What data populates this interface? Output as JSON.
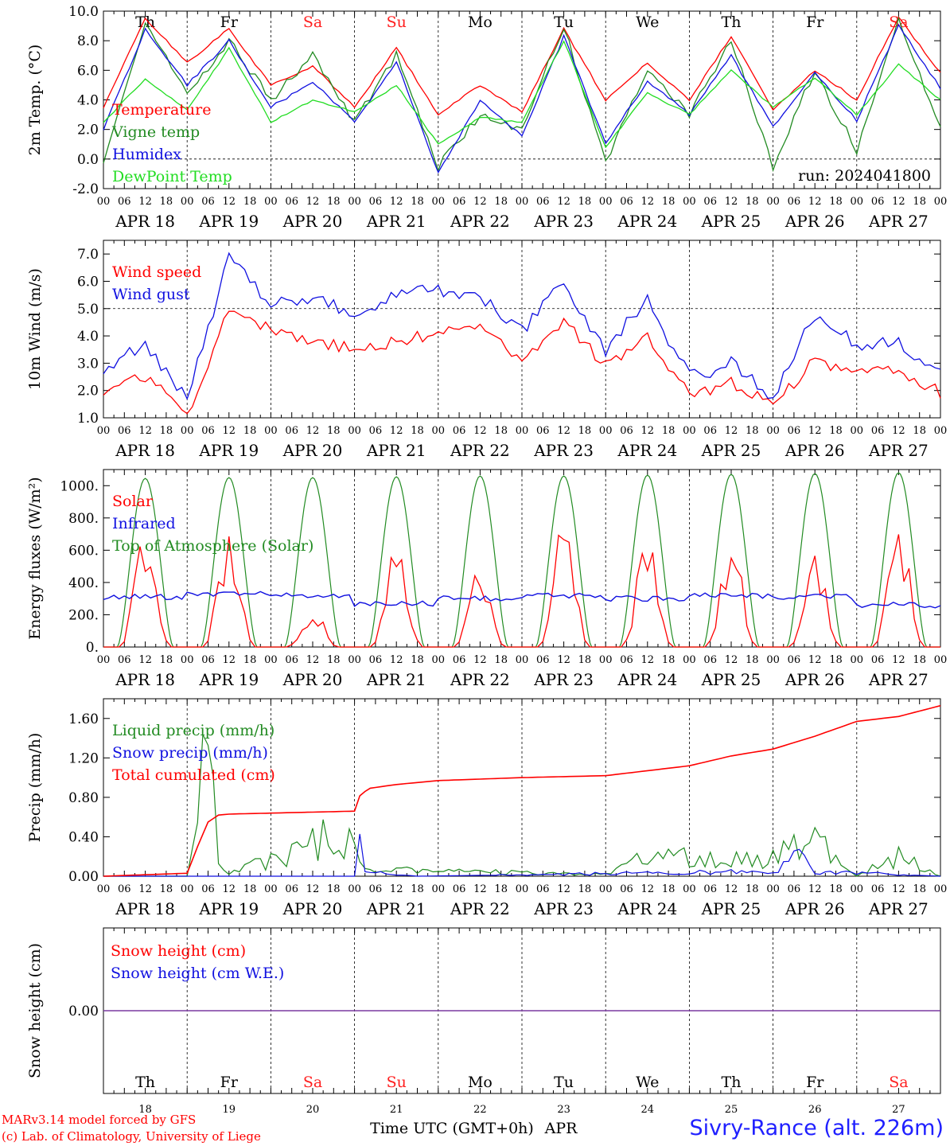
{
  "meta": {
    "run": "run: 2024041800"
  },
  "days": {
    "weekday": [
      "Th",
      "Fr",
      "Sa",
      "Su",
      "Mo",
      "Tu",
      "We",
      "Th",
      "Fr",
      "Sa"
    ],
    "weekend": [
      false,
      false,
      true,
      true,
      false,
      false,
      false,
      false,
      false,
      true
    ],
    "date_labels": [
      "APR 18",
      "APR 19",
      "APR 20",
      "APR 21",
      "APR 22",
      "APR 23",
      "APR 24",
      "APR 25",
      "APR 26",
      "APR 27"
    ],
    "day_numbers": [
      "18",
      "19",
      "20",
      "21",
      "22",
      "23",
      "24",
      "25",
      "26",
      "27"
    ],
    "hour_ticks": [
      "00",
      "06",
      "12",
      "18"
    ],
    "end_tick": "00"
  },
  "colors": {
    "red": "#ff0000",
    "green": "#228b22",
    "blue": "#1010e0",
    "lightgreen": "#22dd22",
    "purple": "#7a3aa0",
    "weekend": "#ff2020"
  },
  "footer": {
    "credit_1": "MARv3.14 model forced by GFS",
    "credit_2": "(c) Lab. of Climatology, University of Liege",
    "time_label": "Time UTC (GMT+0h)",
    "month": "APR",
    "station": "Sivry-Rance (alt. 226m)"
  },
  "chart_data": [
    {
      "type": "line",
      "ylabel": "2m Temp. (°C)",
      "ylim": [
        -2,
        10
      ],
      "yticks": [
        "-2.0",
        "0.0",
        "2.0",
        "4.0",
        "6.0",
        "8.0",
        "10.0"
      ],
      "reference_line": 0,
      "x": [
        0,
        12,
        24,
        36,
        48,
        60,
        72,
        84,
        96,
        108,
        120,
        132,
        144,
        156,
        168,
        180,
        192,
        204,
        216,
        228,
        240
      ],
      "series": [
        {
          "name": "Temperature",
          "color": "red",
          "values": [
            3.5,
            9.5,
            6.5,
            8.8,
            5.0,
            6.3,
            3.5,
            7.5,
            3.0,
            5.0,
            3.2,
            8.8,
            4.0,
            6.5,
            4.0,
            8.3,
            3.3,
            6.0,
            4.0,
            9.6,
            5.8
          ]
        },
        {
          "name": "Vigne temp",
          "color": "green",
          "values": [
            0.0,
            9.0,
            4.5,
            8.0,
            4.0,
            7.0,
            2.5,
            7.0,
            -0.5,
            3.0,
            2.0,
            9.0,
            -0.2,
            6.0,
            3.0,
            8.0,
            -0.5,
            6.0,
            0.5,
            9.5,
            2.0
          ]
        },
        {
          "name": "Humidex",
          "color": "blue",
          "values": [
            2.0,
            8.8,
            5.0,
            8.0,
            3.5,
            5.2,
            2.5,
            6.6,
            -1.0,
            4.0,
            1.6,
            8.3,
            1.0,
            5.3,
            3.0,
            7.0,
            2.2,
            5.8,
            2.6,
            9.0,
            4.8
          ]
        },
        {
          "name": "DewPoint Temp",
          "color": "lightgreen",
          "values": [
            2.5,
            5.4,
            3.3,
            7.5,
            2.5,
            4.0,
            3.2,
            5.0,
            1.0,
            2.8,
            2.5,
            8.0,
            0.8,
            4.5,
            3.0,
            6.0,
            3.5,
            5.5,
            3.0,
            6.4,
            4.0
          ]
        }
      ],
      "annotation": "run: 2024041800"
    },
    {
      "type": "line",
      "ylabel": "10m Wind (m/s)",
      "ylim": [
        1,
        7.5
      ],
      "yticks": [
        "1.0",
        "2.0",
        "3.0",
        "4.0",
        "5.0",
        "6.0",
        "7.0"
      ],
      "reference_line": 5,
      "x": [
        0,
        12,
        24,
        36,
        48,
        60,
        72,
        84,
        96,
        108,
        120,
        132,
        144,
        156,
        168,
        180,
        192,
        204,
        216,
        228,
        240
      ],
      "series": [
        {
          "name": "Wind speed",
          "color": "red",
          "values": [
            2.0,
            2.5,
            1.1,
            5.0,
            4.2,
            3.8,
            3.5,
            3.8,
            4.1,
            4.3,
            3.0,
            4.5,
            2.9,
            4.0,
            1.8,
            2.3,
            1.5,
            3.1,
            2.6,
            2.8,
            1.9
          ]
        },
        {
          "name": "Wind gust",
          "color": "blue",
          "values": [
            2.7,
            3.8,
            1.6,
            7.0,
            5.1,
            5.5,
            4.8,
            5.6,
            5.6,
            5.4,
            4.2,
            5.9,
            3.5,
            5.3,
            2.5,
            3.0,
            1.8,
            4.8,
            3.7,
            3.8,
            2.6
          ]
        }
      ]
    },
    {
      "type": "line",
      "ylabel": "Energy fluxes (W/m²)",
      "ylim": [
        0,
        1100
      ],
      "yticks": [
        "0.",
        "200.",
        "400.",
        "600.",
        "800.",
        "1000."
      ],
      "x_daily_peak_hour": 12,
      "series": [
        {
          "name": "Solar",
          "color": "red",
          "daily_peak": [
            700,
            730,
            250,
            700,
            550,
            770,
            680,
            680,
            640,
            770
          ]
        },
        {
          "name": "Infrared",
          "color": "blue",
          "daily_mean": [
            310,
            330,
            320,
            270,
            300,
            320,
            300,
            320,
            310,
            260
          ]
        },
        {
          "name": "Top of Atmosphere (Solar)",
          "color": "green",
          "daily_peak": [
            1045,
            1050,
            1050,
            1055,
            1060,
            1060,
            1065,
            1070,
            1075,
            1080
          ]
        }
      ]
    },
    {
      "type": "line",
      "ylabel": "Precip (mm/h)",
      "ylim": [
        0,
        1.8
      ],
      "yticks": [
        "0.00",
        "0.40",
        "0.80",
        "1.20",
        "1.60"
      ],
      "series": [
        {
          "name": "Liquid precip (mm/h)",
          "color": "green",
          "x": [
            0,
            24,
            27,
            30,
            33,
            36,
            72,
            73,
            74,
            75,
            90,
            144,
            156,
            168,
            180,
            192,
            204,
            216,
            228,
            240
          ],
          "values": [
            0,
            0,
            0.5,
            1.38,
            0.1,
            0.02,
            0.48,
            0.1,
            0.25,
            0.05,
            0.06,
            0.02,
            0.2,
            0.18,
            0.15,
            0.2,
            0.35,
            0.0,
            0.2,
            0.0
          ]
        },
        {
          "name": "Snow precip (mm/h)",
          "color": "blue",
          "x": [
            0,
            72,
            73,
            74,
            75,
            90,
            192,
            200,
            204,
            240
          ],
          "values": [
            0,
            0,
            0.25,
            0.42,
            0.05,
            0.0,
            0.05,
            0.2,
            0.05,
            0
          ]
        },
        {
          "name": "Total cumulated (cm)",
          "color": "red",
          "x": [
            0,
            24,
            27,
            30,
            33,
            36,
            72,
            73,
            76,
            84,
            96,
            120,
            144,
            156,
            168,
            180,
            192,
            204,
            216,
            228,
            240
          ],
          "values": [
            0.0,
            0.03,
            0.3,
            0.55,
            0.62,
            0.63,
            0.66,
            0.8,
            0.89,
            0.93,
            0.97,
            1.0,
            1.02,
            1.07,
            1.12,
            1.22,
            1.29,
            1.42,
            1.57,
            1.62,
            1.73
          ]
        }
      ]
    },
    {
      "type": "line",
      "ylabel": "Snow height (cm)",
      "yticks": [
        "0.00"
      ],
      "series": [
        {
          "name": "Snow height (cm)",
          "color": "red",
          "values": [
            0,
            0
          ]
        },
        {
          "name": "Snow height (cm W.E.)",
          "color": "blue",
          "values": [
            0,
            0
          ]
        }
      ]
    }
  ]
}
